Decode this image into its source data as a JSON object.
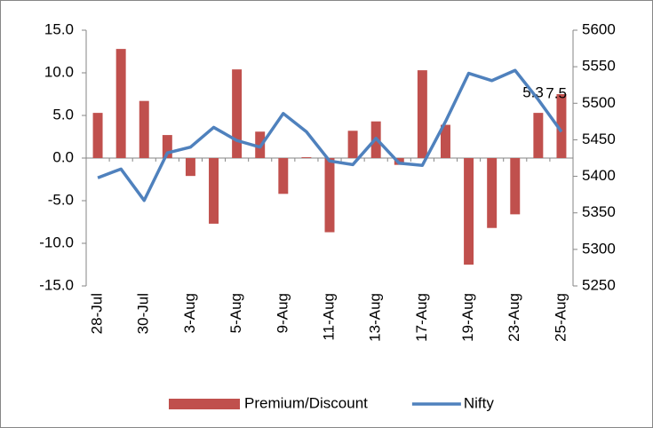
{
  "chart_data": {
    "type": "bar-line",
    "categories": [
      "28-Jul",
      null,
      "30-Jul",
      null,
      "3-Aug",
      null,
      "5-Aug",
      null,
      "9-Aug",
      null,
      "11-Aug",
      null,
      "13-Aug",
      null,
      "17-Aug",
      null,
      "19-Aug",
      null,
      "23-Aug",
      null,
      "25-Aug"
    ],
    "series": [
      {
        "name": "Premium/Discount",
        "type": "bar",
        "color": "#c0504d",
        "values": [
          5.3,
          12.8,
          6.7,
          2.7,
          -2.1,
          -7.7,
          10.4,
          3.1,
          -4.2,
          0.1,
          -8.7,
          3.2,
          4.3,
          -0.8,
          10.3,
          3.9,
          -12.5,
          -8.2,
          -6.6,
          5.3,
          7.5
        ],
        "value_labels": [
          null,
          null,
          null,
          null,
          null,
          null,
          null,
          null,
          null,
          null,
          null,
          null,
          null,
          null,
          null,
          null,
          null,
          null,
          null,
          "5.3",
          "7.5"
        ]
      },
      {
        "name": "Nifty",
        "type": "line",
        "axis": "y2",
        "color": "#4f81bd",
        "values": [
          5398,
          5410,
          5367,
          5432,
          5440,
          5467,
          5449,
          5440,
          5486,
          5461,
          5421,
          5416,
          5452,
          5418,
          5415,
          5475,
          5541,
          5531,
          5545,
          5505,
          5461
        ]
      }
    ],
    "ylim": [
      -15,
      15
    ],
    "yticks": [
      {
        "value": -15,
        "label": "-15.0"
      },
      {
        "value": -10,
        "label": "-10.0"
      },
      {
        "value": -5,
        "label": "-5.0"
      },
      {
        "value": 0,
        "label": "0.0"
      },
      {
        "value": 5,
        "label": "5.0"
      },
      {
        "value": 10,
        "label": "10.0"
      },
      {
        "value": 15,
        "label": "15.0"
      }
    ],
    "y2lim": [
      5250,
      5600
    ],
    "y2ticks": [
      5250,
      5300,
      5350,
      5400,
      5450,
      5500,
      5550,
      5600
    ],
    "legend": "bottom"
  }
}
